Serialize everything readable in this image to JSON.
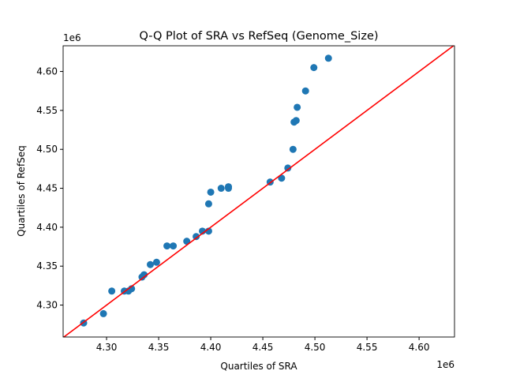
{
  "chart_data": {
    "type": "scatter",
    "title": "Q-Q Plot of SRA vs RefSeq (Genome_Size)",
    "xlabel": "Quartiles of SRA",
    "ylabel": "Quartiles of RefSeq",
    "x_offset_label": "1e6",
    "y_offset_label": "1e6",
    "xlim": [
      4.2583,
      4.634
    ],
    "ylim": [
      4.259,
      4.633
    ],
    "xticks": [
      "4.30",
      "4.35",
      "4.40",
      "4.45",
      "4.50",
      "4.55",
      "4.60"
    ],
    "yticks": [
      "4.30",
      "4.35",
      "4.40",
      "4.45",
      "4.50",
      "4.55",
      "4.60"
    ],
    "grid": false,
    "point_color": "#1f77b4",
    "reference_line": {
      "type": "y=x",
      "color": "#ff0000"
    },
    "points": [
      [
        4.278,
        4.277
      ],
      [
        4.297,
        4.289
      ],
      [
        4.305,
        4.318
      ],
      [
        4.317,
        4.318
      ],
      [
        4.321,
        4.318
      ],
      [
        4.324,
        4.321
      ],
      [
        4.334,
        4.336
      ],
      [
        4.336,
        4.339
      ],
      [
        4.342,
        4.352
      ],
      [
        4.348,
        4.355
      ],
      [
        4.358,
        4.376
      ],
      [
        4.364,
        4.376
      ],
      [
        4.377,
        4.382
      ],
      [
        4.386,
        4.388
      ],
      [
        4.392,
        4.395
      ],
      [
        4.398,
        4.395
      ],
      [
        4.398,
        4.43
      ],
      [
        4.4,
        4.445
      ],
      [
        4.41,
        4.45
      ],
      [
        4.417,
        4.452
      ],
      [
        4.417,
        4.45
      ],
      [
        4.457,
        4.458
      ],
      [
        4.468,
        4.463
      ],
      [
        4.474,
        4.476
      ],
      [
        4.479,
        4.5
      ],
      [
        4.48,
        4.535
      ],
      [
        4.482,
        4.537
      ],
      [
        4.483,
        4.554
      ],
      [
        4.491,
        4.575
      ],
      [
        4.499,
        4.605
      ],
      [
        4.513,
        4.617
      ]
    ]
  }
}
